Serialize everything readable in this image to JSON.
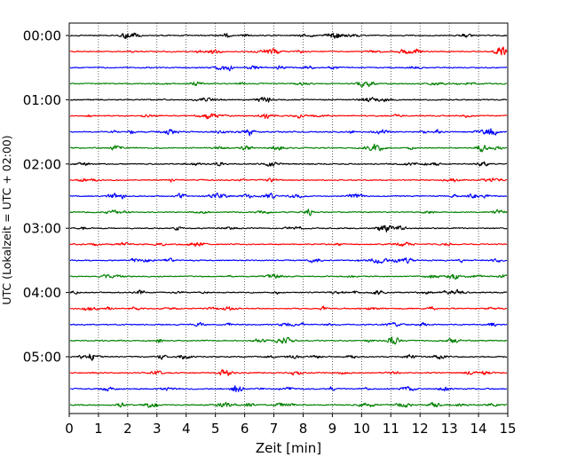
{
  "chart_data": {
    "type": "line",
    "title": "",
    "xlabel": "Zeit  [min]",
    "ylabel": "UTC (Lokalzeit = UTC + 02:00)",
    "xlim": [
      0,
      15
    ],
    "x_ticks": [
      "0",
      "1",
      "2",
      "3",
      "4",
      "5",
      "6",
      "7",
      "8",
      "9",
      "10",
      "11",
      "12",
      "13",
      "14",
      "15"
    ],
    "y_tick_labels": [
      "00:00",
      "01:00",
      "02:00",
      "03:00",
      "04:00",
      "05:00"
    ],
    "trace_interval_min": 15,
    "traces_per_hour": 4,
    "trace_count": 24,
    "vertical_grid": true,
    "grid_style": "dotted",
    "legend": "none",
    "series_colors": [
      "#000000",
      "#ff0000",
      "#0000ff",
      "#008000"
    ]
  }
}
